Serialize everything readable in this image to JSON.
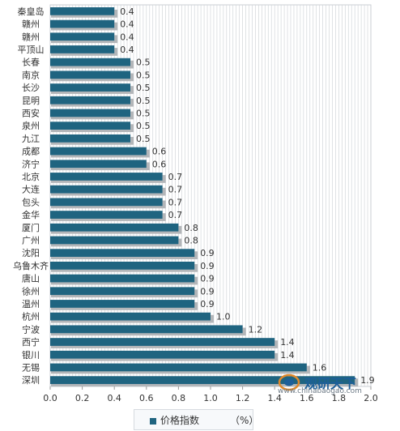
{
  "chart_data": {
    "type": "bar",
    "orientation": "horizontal",
    "categories": [
      "秦皇岛",
      "赣州",
      "赣州",
      "平顶山",
      "长春",
      "南京",
      "长沙",
      "昆明",
      "西安",
      "泉州",
      "九江",
      "成都",
      "济宁",
      "北京",
      "大连",
      "包头",
      "金华",
      "厦门",
      "广州",
      "沈阳",
      "乌鲁木齐",
      "唐山",
      "徐州",
      "温州",
      "杭州",
      "宁波",
      "西宁",
      "银川",
      "无锡",
      "深圳"
    ],
    "series": [
      {
        "name": "价格指数",
        "values": [
          0.4,
          0.4,
          0.4,
          0.4,
          0.5,
          0.5,
          0.5,
          0.5,
          0.5,
          0.5,
          0.5,
          0.6,
          0.6,
          0.7,
          0.7,
          0.7,
          0.7,
          0.8,
          0.8,
          0.9,
          0.9,
          0.9,
          0.9,
          0.9,
          1.0,
          1.2,
          1.4,
          1.4,
          1.6,
          1.9
        ]
      }
    ],
    "data_labels": [
      "0.4",
      "0.4",
      "0.4",
      "0.4",
      "0.5",
      "0.5",
      "0.5",
      "0.5",
      "0.5",
      "0.5",
      "0.5",
      "0.6",
      "0.6",
      "0.7",
      "0.7",
      "0.7",
      "0.7",
      "0.8",
      "0.8",
      "0.9",
      "0.9",
      "0.9",
      "0.9",
      "0.9",
      "1.0",
      "1.2",
      "1.4",
      "1.4",
      "1.6",
      "1.9"
    ],
    "xlim": [
      0,
      2.0
    ],
    "xticks": [
      "0.0",
      "0.2",
      "0.4",
      "0.6",
      "0.8",
      "1.0",
      "1.2",
      "1.4",
      "1.6",
      "1.8",
      "2.0"
    ],
    "grid": "vertical",
    "legend": {
      "position": "bottom",
      "label": "价格指数",
      "unit": "（%）"
    },
    "colors": {
      "bar": "#1f6480",
      "shadow": "#b3b6b9",
      "grid": "#c9ced3",
      "text": "#333333"
    }
  },
  "watermark": {
    "title": "观研天下",
    "url": "www.chinabaogao.com"
  }
}
